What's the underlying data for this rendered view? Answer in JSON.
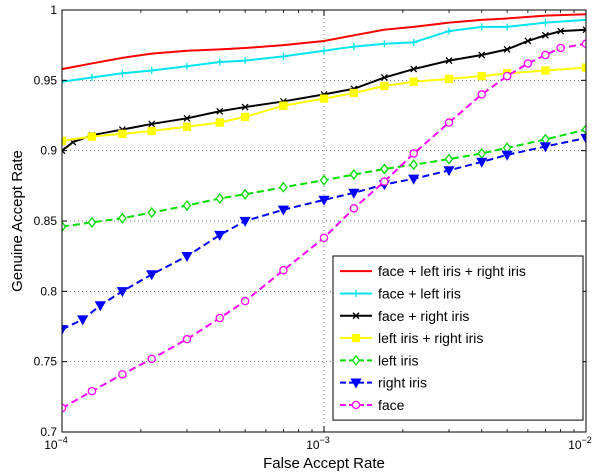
{
  "chart_data": {
    "type": "line",
    "xscale": "log",
    "xlim": [
      0.0001,
      0.01
    ],
    "ylim": [
      0.7,
      1.0
    ],
    "xlabel": "False Accept Rate",
    "ylabel": "Genuine Accept Rate",
    "x_ticks": [
      0.0001,
      0.001,
      0.01
    ],
    "x_tick_labels": [
      {
        "base": "10",
        "exp": "−4"
      },
      {
        "base": "10",
        "exp": "−3"
      },
      {
        "base": "10",
        "exp": "−2"
      }
    ],
    "y_ticks": [
      0.7,
      0.75,
      0.8,
      0.85,
      0.9,
      0.95,
      1.0
    ],
    "y_tick_labels": [
      "0.7",
      "0.75",
      "0.8",
      "0.85",
      "0.9",
      "0.95",
      "1"
    ],
    "legend_position": "bottom-right",
    "series": [
      {
        "name": "face + left iris + right iris",
        "color": "#ff0000",
        "dash": "solid",
        "marker": "none",
        "points": [
          [
            0.0001,
            0.958
          ],
          [
            0.00013,
            0.962
          ],
          [
            0.00017,
            0.966
          ],
          [
            0.00022,
            0.969
          ],
          [
            0.0003,
            0.971
          ],
          [
            0.0004,
            0.972
          ],
          [
            0.0005,
            0.973
          ],
          [
            0.0007,
            0.975
          ],
          [
            0.001,
            0.978
          ],
          [
            0.0013,
            0.982
          ],
          [
            0.0017,
            0.986
          ],
          [
            0.0022,
            0.988
          ],
          [
            0.003,
            0.991
          ],
          [
            0.004,
            0.993
          ],
          [
            0.005,
            0.994
          ],
          [
            0.007,
            0.996
          ],
          [
            0.01,
            0.997
          ]
        ]
      },
      {
        "name": "face + left iris",
        "color": "#00e5ee",
        "dash": "solid",
        "marker": "plus",
        "points": [
          [
            0.0001,
            0.949
          ],
          [
            0.00013,
            0.952
          ],
          [
            0.00017,
            0.955
          ],
          [
            0.00022,
            0.957
          ],
          [
            0.0003,
            0.96
          ],
          [
            0.0004,
            0.963
          ],
          [
            0.0005,
            0.964
          ],
          [
            0.0007,
            0.967
          ],
          [
            0.001,
            0.971
          ],
          [
            0.0013,
            0.974
          ],
          [
            0.0017,
            0.976
          ],
          [
            0.0022,
            0.977
          ],
          [
            0.003,
            0.985
          ],
          [
            0.004,
            0.988
          ],
          [
            0.005,
            0.988
          ],
          [
            0.007,
            0.991
          ],
          [
            0.01,
            0.993
          ]
        ]
      },
      {
        "name": "face + right iris",
        "color": "#000000",
        "dash": "solid",
        "marker": "x",
        "points": [
          [
            0.0001,
            0.9
          ],
          [
            0.00011,
            0.906
          ],
          [
            0.00013,
            0.911
          ],
          [
            0.00017,
            0.915
          ],
          [
            0.00022,
            0.919
          ],
          [
            0.0003,
            0.923
          ],
          [
            0.0004,
            0.928
          ],
          [
            0.0005,
            0.931
          ],
          [
            0.0007,
            0.935
          ],
          [
            0.001,
            0.94
          ],
          [
            0.0013,
            0.944
          ],
          [
            0.0017,
            0.952
          ],
          [
            0.0022,
            0.958
          ],
          [
            0.003,
            0.964
          ],
          [
            0.004,
            0.968
          ],
          [
            0.005,
            0.972
          ],
          [
            0.006,
            0.978
          ],
          [
            0.007,
            0.982
          ],
          [
            0.008,
            0.985
          ],
          [
            0.01,
            0.986
          ]
        ]
      },
      {
        "name": "left iris + right iris",
        "color": "#ffff00",
        "dash": "solid",
        "marker": "square",
        "points": [
          [
            0.0001,
            0.907
          ],
          [
            0.00013,
            0.91
          ],
          [
            0.00017,
            0.912
          ],
          [
            0.00022,
            0.914
          ],
          [
            0.0003,
            0.917
          ],
          [
            0.0004,
            0.92
          ],
          [
            0.0005,
            0.924
          ],
          [
            0.0007,
            0.932
          ],
          [
            0.001,
            0.937
          ],
          [
            0.0013,
            0.941
          ],
          [
            0.0017,
            0.946
          ],
          [
            0.0022,
            0.949
          ],
          [
            0.003,
            0.951
          ],
          [
            0.004,
            0.953
          ],
          [
            0.005,
            0.955
          ],
          [
            0.007,
            0.957
          ],
          [
            0.01,
            0.959
          ]
        ]
      },
      {
        "name": "left iris",
        "color": "#00dd00",
        "dash": "dashed",
        "marker": "diamond",
        "points": [
          [
            0.0001,
            0.846
          ],
          [
            0.00013,
            0.849
          ],
          [
            0.00017,
            0.852
          ],
          [
            0.00022,
            0.856
          ],
          [
            0.0003,
            0.861
          ],
          [
            0.0004,
            0.866
          ],
          [
            0.0005,
            0.869
          ],
          [
            0.0007,
            0.874
          ],
          [
            0.001,
            0.879
          ],
          [
            0.0013,
            0.883
          ],
          [
            0.0017,
            0.887
          ],
          [
            0.0022,
            0.89
          ],
          [
            0.003,
            0.894
          ],
          [
            0.004,
            0.898
          ],
          [
            0.005,
            0.902
          ],
          [
            0.007,
            0.908
          ],
          [
            0.01,
            0.915
          ]
        ]
      },
      {
        "name": "right iris",
        "color": "#0000ff",
        "dash": "dashed",
        "marker": "triangle-down",
        "points": [
          [
            0.0001,
            0.773
          ],
          [
            0.00012,
            0.78
          ],
          [
            0.00014,
            0.79
          ],
          [
            0.00017,
            0.8
          ],
          [
            0.00022,
            0.812
          ],
          [
            0.0003,
            0.825
          ],
          [
            0.0004,
            0.84
          ],
          [
            0.0005,
            0.85
          ],
          [
            0.0007,
            0.858
          ],
          [
            0.001,
            0.865
          ],
          [
            0.0013,
            0.87
          ],
          [
            0.0017,
            0.876
          ],
          [
            0.0022,
            0.88
          ],
          [
            0.003,
            0.886
          ],
          [
            0.004,
            0.892
          ],
          [
            0.005,
            0.897
          ],
          [
            0.007,
            0.903
          ],
          [
            0.01,
            0.909
          ]
        ]
      },
      {
        "name": "face",
        "color": "#ff00ff",
        "dash": "dashed",
        "marker": "circle",
        "points": [
          [
            0.0001,
            0.717
          ],
          [
            0.00013,
            0.729
          ],
          [
            0.00017,
            0.741
          ],
          [
            0.00022,
            0.752
          ],
          [
            0.0003,
            0.766
          ],
          [
            0.0004,
            0.781
          ],
          [
            0.0005,
            0.793
          ],
          [
            0.0007,
            0.815
          ],
          [
            0.001,
            0.838
          ],
          [
            0.0013,
            0.859
          ],
          [
            0.0017,
            0.878
          ],
          [
            0.0022,
            0.898
          ],
          [
            0.003,
            0.92
          ],
          [
            0.004,
            0.94
          ],
          [
            0.005,
            0.953
          ],
          [
            0.006,
            0.962
          ],
          [
            0.007,
            0.968
          ],
          [
            0.008,
            0.973
          ],
          [
            0.01,
            0.976
          ]
        ]
      }
    ]
  }
}
